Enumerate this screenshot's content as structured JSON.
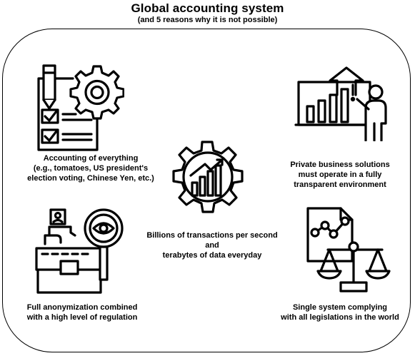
{
  "title": "Global accounting system",
  "subtitle": "(and 5 reasons why it is not possible)",
  "items": [
    {
      "icon": "checklist-gear-icon",
      "lines": [
        "Accounting of everything",
        "(e.g., tomatoes, US president's",
        "election voting, Chinese Yen, etc.)"
      ]
    },
    {
      "icon": "presentation-chart-icon",
      "lines": [
        "Private business solutions",
        "must operate in a fully",
        "transparent environment"
      ]
    },
    {
      "icon": "gear-chart-icon",
      "lines": [
        "Billions of transactions per second",
        "and",
        "terabytes of data everyday"
      ]
    },
    {
      "icon": "anonymous-bag-magnifier-icon",
      "lines": [
        "Full anonymization combined",
        "with a high level of regulation"
      ]
    },
    {
      "icon": "scales-document-icon",
      "lines": [
        "Single system complying",
        "with all legislations in the world"
      ]
    }
  ]
}
